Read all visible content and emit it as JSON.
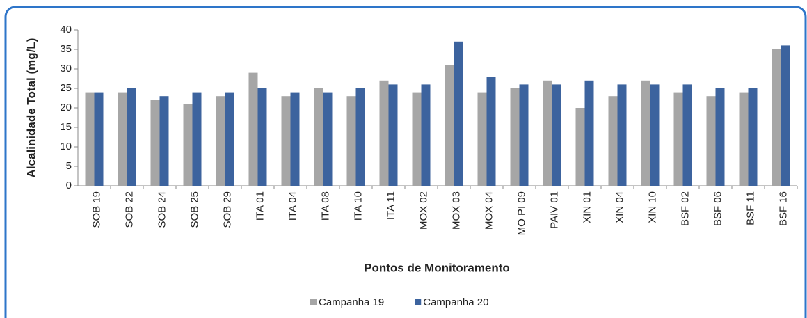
{
  "chart_data": {
    "type": "bar",
    "x_label": "Pontos de Monitoramento",
    "y_label": "Alcalinidade Total (mg/L)",
    "categories": [
      "SOB 19",
      "SOB 22",
      "SOB 24",
      "SOB 25",
      "SOB 29",
      "ITA 01",
      "ITA 04",
      "ITA 08",
      "ITA 10",
      "ITA 11",
      "MOX 02",
      "MOX 03",
      "MOX 04",
      "MO PI 09",
      "PAIV 01",
      "XIN 01",
      "XIN 04",
      "XIN 10",
      "BSF 02",
      "BSF 06",
      "BSF 11",
      "BSF 16"
    ],
    "series": [
      {
        "name": "Campanha 19",
        "color": "#a6a6a6",
        "values": [
          24,
          24,
          22,
          21,
          23,
          29,
          23,
          25,
          23,
          27,
          24,
          31,
          24,
          25,
          27,
          20,
          23,
          27,
          24,
          23,
          24,
          35
        ]
      },
      {
        "name": "Campanha 20",
        "color": "#3c639e",
        "values": [
          24,
          25,
          23,
          24,
          24,
          25,
          24,
          24,
          25,
          26,
          26,
          37,
          28,
          26,
          26,
          27,
          26,
          26,
          26,
          25,
          25,
          36
        ]
      }
    ],
    "ylim": [
      0,
      40
    ],
    "yticks": [
      0,
      5,
      10,
      15,
      20,
      25,
      30,
      35,
      40
    ],
    "grid": false,
    "legend": "bottom"
  }
}
